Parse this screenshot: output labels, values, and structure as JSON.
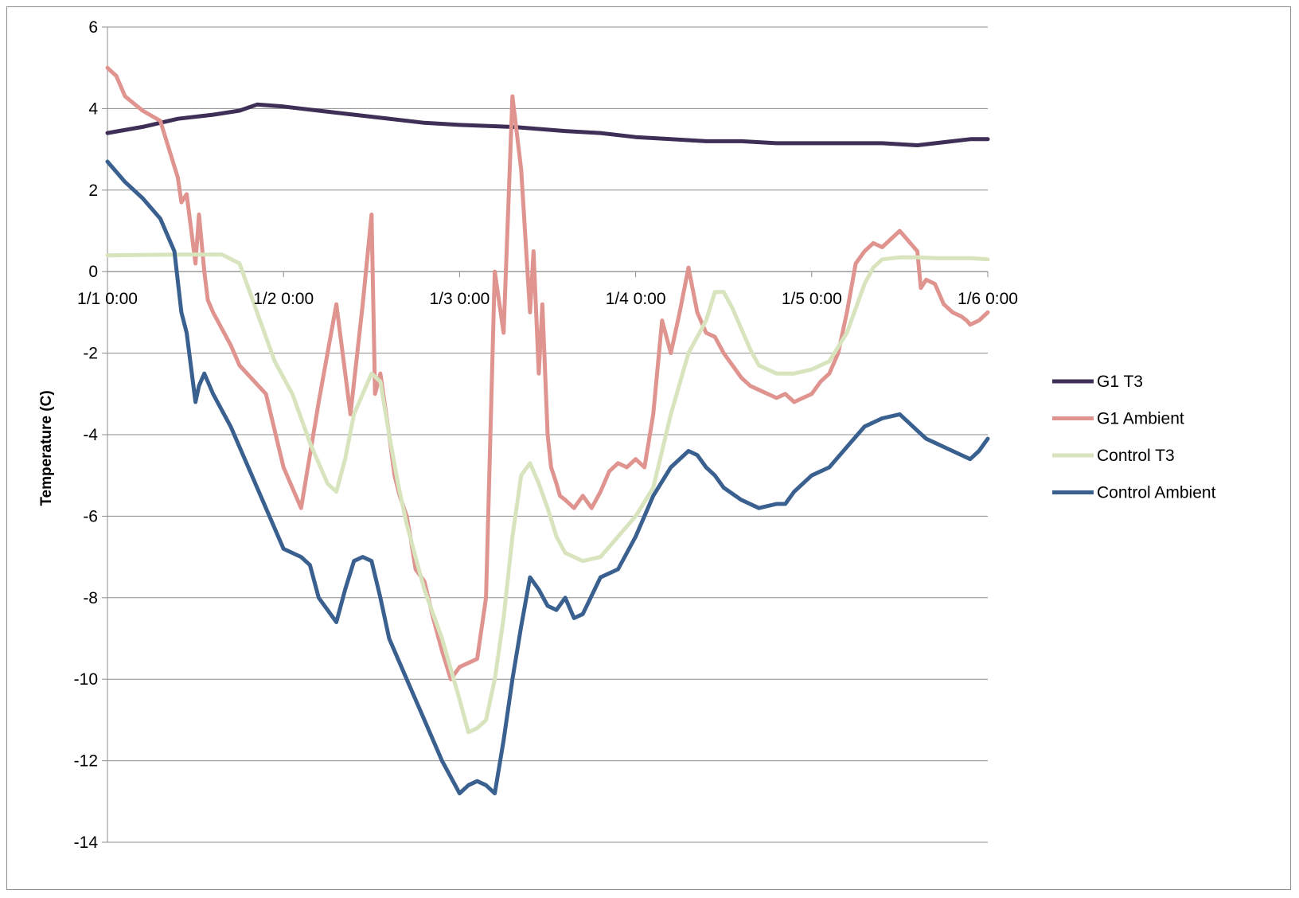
{
  "chart_data": {
    "type": "line",
    "title": "",
    "xlabel": "",
    "ylabel": "Temperature (C)",
    "ylim": [
      -14,
      6
    ],
    "yticks": [
      6,
      4,
      2,
      0,
      -2,
      -4,
      -6,
      -8,
      -10,
      -12,
      -14
    ],
    "xlim": [
      0,
      5
    ],
    "xticks": [
      0,
      1,
      2,
      3,
      4,
      5
    ],
    "xtick_labels": [
      "1/1 0:00",
      "1/2 0:00",
      "1/3 0:00",
      "1/4 0:00",
      "1/5 0:00",
      "1/6 0:00"
    ],
    "x_unit": "days since 1/1 0:00",
    "grid": "horizontal",
    "legend_position": "right",
    "series": [
      {
        "name": "G1 T3",
        "color": "#3f2e56",
        "x": [
          0,
          0.2,
          0.4,
          0.6,
          0.75,
          0.85,
          1.0,
          1.2,
          1.5,
          1.8,
          2.0,
          2.3,
          2.6,
          2.8,
          3.0,
          3.2,
          3.4,
          3.6,
          3.8,
          4.0,
          4.2,
          4.4,
          4.6,
          4.8,
          4.9,
          5.0
        ],
        "y": [
          3.4,
          3.55,
          3.75,
          3.85,
          3.95,
          4.1,
          4.05,
          3.95,
          3.8,
          3.65,
          3.6,
          3.55,
          3.45,
          3.4,
          3.3,
          3.25,
          3.2,
          3.2,
          3.15,
          3.15,
          3.15,
          3.15,
          3.1,
          3.2,
          3.25,
          3.25
        ]
      },
      {
        "name": "G1 Ambient",
        "color": "#e0948f",
        "x": [
          0,
          0.05,
          0.1,
          0.2,
          0.3,
          0.4,
          0.42,
          0.45,
          0.5,
          0.52,
          0.55,
          0.57,
          0.6,
          0.7,
          0.75,
          0.9,
          1.0,
          1.1,
          1.2,
          1.3,
          1.38,
          1.45,
          1.5,
          1.52,
          1.55,
          1.6,
          1.63,
          1.66,
          1.7,
          1.72,
          1.75,
          1.8,
          1.85,
          1.9,
          1.95,
          2.0,
          2.05,
          2.1,
          2.15,
          2.2,
          2.25,
          2.3,
          2.35,
          2.4,
          2.42,
          2.45,
          2.47,
          2.5,
          2.52,
          2.55,
          2.57,
          2.6,
          2.65,
          2.7,
          2.75,
          2.8,
          2.85,
          2.9,
          2.95,
          3.0,
          3.05,
          3.1,
          3.15,
          3.2,
          3.25,
          3.3,
          3.35,
          3.4,
          3.45,
          3.5,
          3.55,
          3.6,
          3.65,
          3.7,
          3.75,
          3.8,
          3.85,
          3.9,
          3.95,
          4.0,
          4.05,
          4.1,
          4.15,
          4.2,
          4.25,
          4.3,
          4.35,
          4.4,
          4.5,
          4.6,
          4.62,
          4.65,
          4.7,
          4.75,
          4.8,
          4.85,
          4.88,
          4.9,
          4.95,
          5.0
        ],
        "y": [
          5.0,
          4.8,
          4.3,
          3.95,
          3.7,
          2.3,
          1.7,
          1.9,
          0.2,
          1.4,
          0.0,
          -0.7,
          -1.0,
          -1.8,
          -2.3,
          -3.0,
          -4.8,
          -5.8,
          -3.2,
          -0.8,
          -3.5,
          -0.8,
          1.4,
          -3.0,
          -2.5,
          -4.0,
          -5.0,
          -5.5,
          -6.0,
          -6.5,
          -7.3,
          -7.6,
          -8.5,
          -9.3,
          -10.0,
          -9.7,
          -9.6,
          -9.5,
          -8.0,
          0.0,
          -1.5,
          4.3,
          2.5,
          -1.0,
          0.5,
          -2.5,
          -0.8,
          -4.0,
          -4.8,
          -5.2,
          -5.5,
          -5.6,
          -5.8,
          -5.5,
          -5.8,
          -5.4,
          -4.9,
          -4.7,
          -4.8,
          -4.6,
          -4.8,
          -3.5,
          -1.2,
          -2.0,
          -1.0,
          0.1,
          -1.0,
          -1.5,
          -1.6,
          -2.0,
          -2.3,
          -2.6,
          -2.8,
          -2.9,
          -3.0,
          -3.1,
          -3.0,
          -3.2,
          -3.1,
          -3.0,
          -2.7,
          -2.5,
          -2.0,
          -1.0,
          0.2,
          0.5,
          0.7,
          0.6,
          1.0,
          0.5,
          -0.4,
          -0.2,
          -0.3,
          -0.8,
          -1.0,
          -1.1,
          -1.2,
          -1.3,
          -1.2,
          -1.0
        ]
      },
      {
        "name": "Control T3",
        "color": "#d7e4bd",
        "x": [
          0,
          0.4,
          0.65,
          0.75,
          0.85,
          0.95,
          1.05,
          1.15,
          1.25,
          1.3,
          1.35,
          1.4,
          1.45,
          1.5,
          1.55,
          1.6,
          1.65,
          1.7,
          1.8,
          1.9,
          2.0,
          2.05,
          2.1,
          2.15,
          2.2,
          2.25,
          2.3,
          2.35,
          2.4,
          2.45,
          2.5,
          2.55,
          2.6,
          2.7,
          2.8,
          2.9,
          3.0,
          3.1,
          3.2,
          3.3,
          3.4,
          3.45,
          3.5,
          3.55,
          3.6,
          3.65,
          3.7,
          3.8,
          3.9,
          4.0,
          4.1,
          4.2,
          4.3,
          4.35,
          4.4,
          4.5,
          4.6,
          4.7,
          4.75,
          4.8,
          4.9,
          5.0
        ],
        "y": [
          0.4,
          0.42,
          0.42,
          0.2,
          -1.0,
          -2.2,
          -3.0,
          -4.2,
          -5.2,
          -5.4,
          -4.6,
          -3.5,
          -3.0,
          -2.5,
          -2.7,
          -4.0,
          -5.2,
          -6.2,
          -7.8,
          -9.0,
          -10.5,
          -11.3,
          -11.2,
          -11.0,
          -10.0,
          -8.5,
          -6.5,
          -5.0,
          -4.7,
          -5.2,
          -5.8,
          -6.5,
          -6.9,
          -7.1,
          -7.0,
          -6.5,
          -6.0,
          -5.3,
          -3.5,
          -2.0,
          -1.2,
          -0.5,
          -0.5,
          -0.9,
          -1.4,
          -1.9,
          -2.3,
          -2.5,
          -2.5,
          -2.4,
          -2.2,
          -1.5,
          -0.3,
          0.1,
          0.3,
          0.35,
          0.35,
          0.33,
          0.33,
          0.33,
          0.33,
          0.3
        ]
      },
      {
        "name": "Control Ambient",
        "color": "#3a6090",
        "x": [
          0,
          0.1,
          0.2,
          0.3,
          0.38,
          0.42,
          0.45,
          0.5,
          0.52,
          0.55,
          0.6,
          0.7,
          0.8,
          0.9,
          1.0,
          1.1,
          1.15,
          1.2,
          1.3,
          1.35,
          1.4,
          1.45,
          1.5,
          1.55,
          1.6,
          1.7,
          1.8,
          1.9,
          2.0,
          2.05,
          2.1,
          2.15,
          2.2,
          2.25,
          2.3,
          2.35,
          2.4,
          2.45,
          2.5,
          2.55,
          2.6,
          2.65,
          2.7,
          2.8,
          2.9,
          3.0,
          3.1,
          3.2,
          3.3,
          3.35,
          3.4,
          3.45,
          3.5,
          3.6,
          3.7,
          3.8,
          3.85,
          3.9,
          3.95,
          4.0,
          4.1,
          4.2,
          4.3,
          4.4,
          4.5,
          4.6,
          4.65,
          4.7,
          4.75,
          4.8,
          4.85,
          4.9,
          4.95,
          5.0
        ],
        "y": [
          2.7,
          2.2,
          1.8,
          1.3,
          0.5,
          -1.0,
          -1.5,
          -3.2,
          -2.8,
          -2.5,
          -3.0,
          -3.8,
          -4.8,
          -5.8,
          -6.8,
          -7.0,
          -7.2,
          -8.0,
          -8.6,
          -7.8,
          -7.1,
          -7.0,
          -7.1,
          -8.0,
          -9.0,
          -10.0,
          -11.0,
          -12.0,
          -12.8,
          -12.6,
          -12.5,
          -12.6,
          -12.8,
          -11.5,
          -10.0,
          -8.7,
          -7.5,
          -7.8,
          -8.2,
          -8.3,
          -8.0,
          -8.5,
          -8.4,
          -7.5,
          -7.3,
          -6.5,
          -5.5,
          -4.8,
          -4.4,
          -4.5,
          -4.8,
          -5.0,
          -5.3,
          -5.6,
          -5.8,
          -5.7,
          -5.7,
          -5.4,
          -5.2,
          -5.0,
          -4.8,
          -4.3,
          -3.8,
          -3.6,
          -3.5,
          -3.9,
          -4.1,
          -4.2,
          -4.3,
          -4.4,
          -4.5,
          -4.6,
          -4.4,
          -4.1
        ]
      }
    ]
  }
}
